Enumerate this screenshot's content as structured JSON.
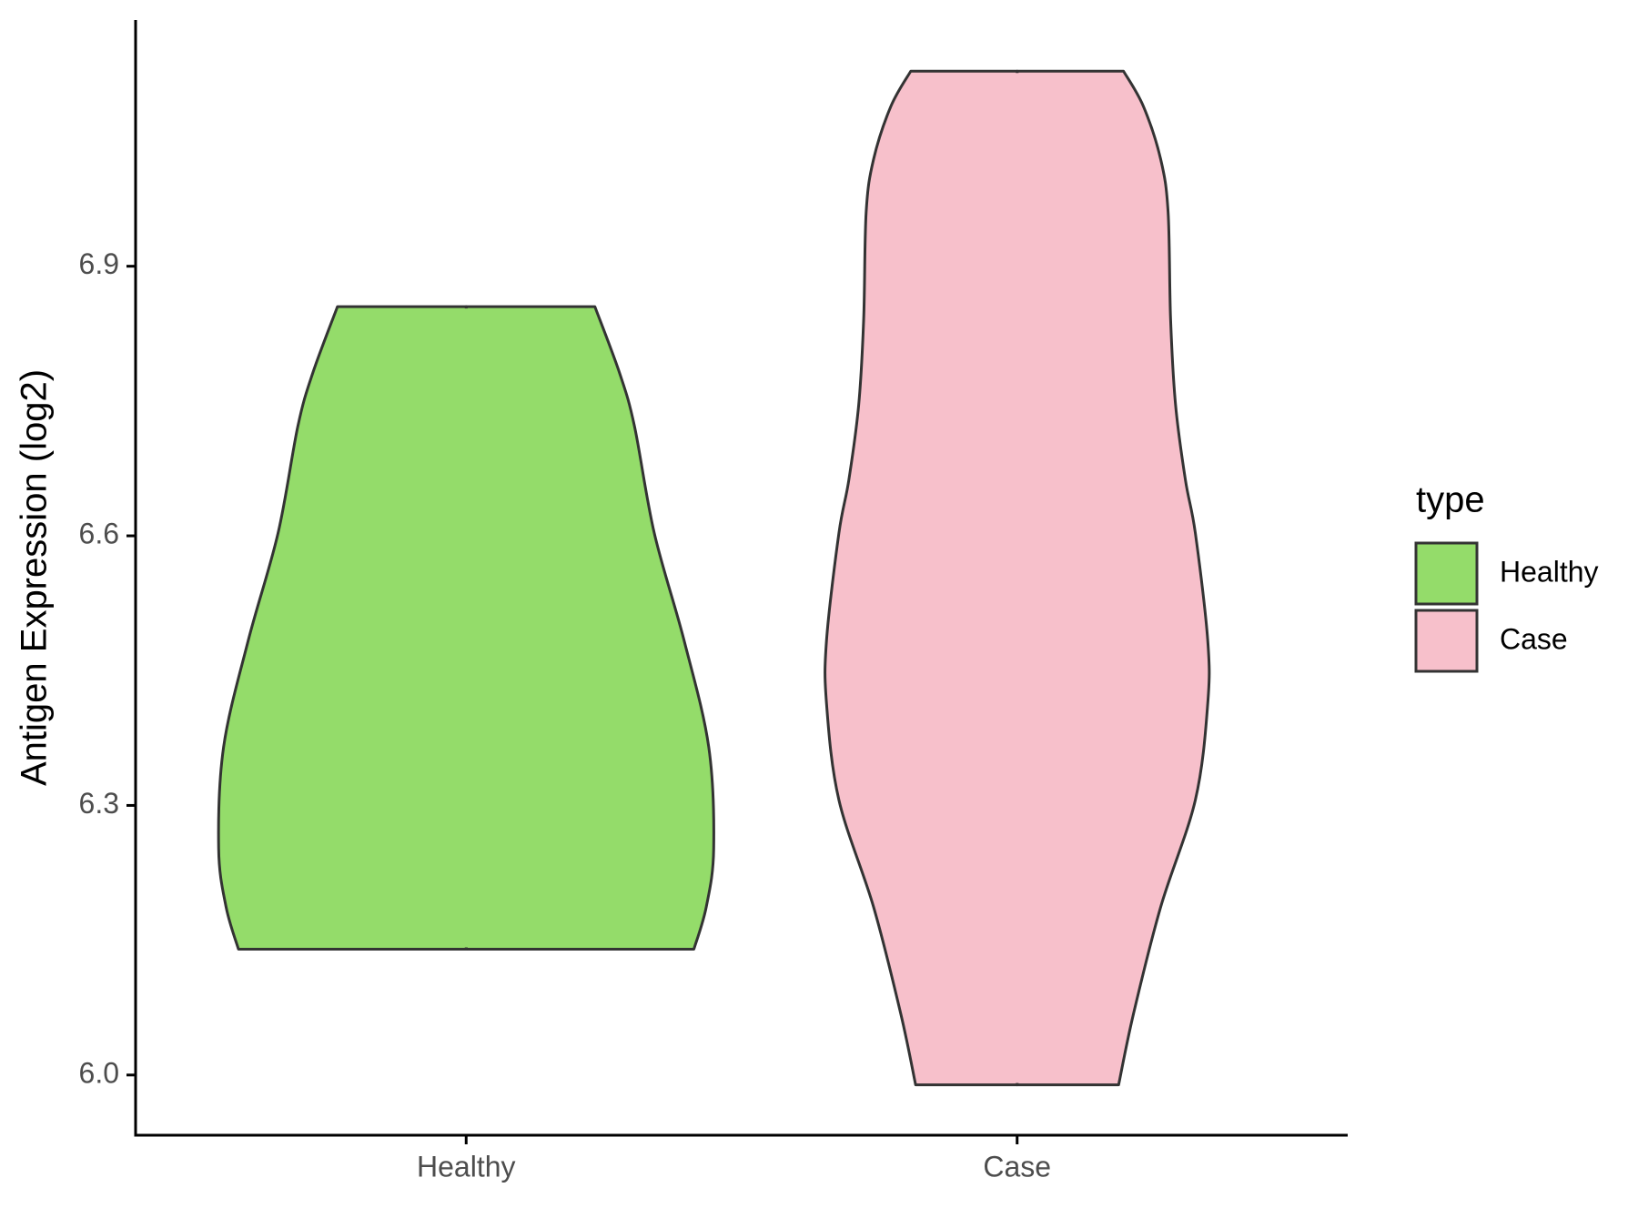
{
  "chart_data": {
    "type": "violin",
    "y_label": "Antigen Expression (log2)",
    "categories": [
      "Healthy",
      "Case"
    ],
    "legend_title": "type",
    "series": [
      {
        "name": "Healthy",
        "color": "#94dc6a",
        "y": [
          6.855,
          6.781,
          6.722,
          6.603,
          6.484,
          6.365,
          6.252,
          6.187,
          6.14
        ],
        "density": [
          0.52,
          0.62,
          0.68,
          0.76,
          0.88,
          0.98,
          1.0,
          0.97,
          0.92
        ]
      },
      {
        "name": "Case",
        "color": "#f7c0cb",
        "y": [
          7.117,
          7.078,
          7.019,
          6.96,
          6.841,
          6.746,
          6.662,
          6.603,
          6.484,
          6.413,
          6.306,
          6.187,
          6.068,
          5.989
        ],
        "density": [
          0.43,
          0.51,
          0.58,
          0.61,
          0.62,
          0.64,
          0.68,
          0.72,
          0.77,
          0.77,
          0.72,
          0.58,
          0.47,
          0.41
        ]
      }
    ],
    "ylim": [
      5.933,
      7.174
    ],
    "yticks": [
      {
        "value": 6,
        "label": "6.0"
      },
      {
        "value": 6.3,
        "label": "6.3"
      },
      {
        "value": 6.6,
        "label": "6.6"
      },
      {
        "value": 6.9,
        "label": "6.9"
      }
    ],
    "legend_position": "right"
  }
}
